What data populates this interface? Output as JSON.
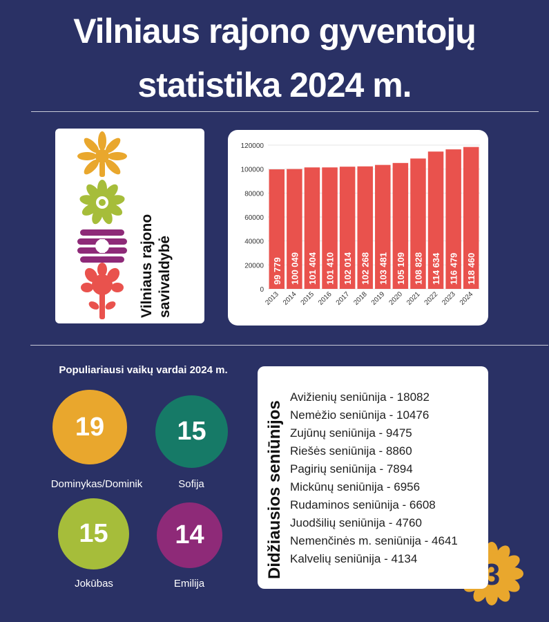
{
  "header": {
    "title_line1": "Vilniaus rajono gyventojų",
    "title_line2": "statistika 2024 m."
  },
  "logo": {
    "text_line1": "Vilniaus rajono",
    "text_line2": "savivaldybė",
    "colors": [
      "#e9a72d",
      "#a6bd3a",
      "#8e2a78",
      "#e9524d"
    ]
  },
  "chart_data": {
    "type": "bar",
    "categories": [
      "2013",
      "2014",
      "2015",
      "2016",
      "2017",
      "2018",
      "2019",
      "2020",
      "2021",
      "2022",
      "2023",
      "2024"
    ],
    "values": [
      99779,
      100049,
      101404,
      101410,
      102014,
      102268,
      103481,
      105109,
      108828,
      114634,
      116479,
      118460
    ],
    "value_labels": [
      "99 779",
      "100 049",
      "101 404",
      "101 410",
      "102 014",
      "102 268",
      "103 481",
      "105 109",
      "108 828",
      "114 634",
      "116 479",
      "118 460"
    ],
    "yticks": [
      "0",
      "20000",
      "40000",
      "60000",
      "80000",
      "100000",
      "120000"
    ],
    "ylim": [
      0,
      120000
    ],
    "bar_color": "#e9524d",
    "grid": true
  },
  "names": {
    "title": "Populiariausi vaikų vardai 2024 m.",
    "items": [
      {
        "count": "19",
        "name": "Dominykas/Dominik",
        "color": "#e9a72d"
      },
      {
        "count": "15",
        "name": "Sofija",
        "color": "#167a67"
      },
      {
        "count": "15",
        "name": "Jokūbas",
        "color": "#a6bd3a"
      },
      {
        "count": "14",
        "name": "Emilija",
        "color": "#8e2a78"
      }
    ]
  },
  "elderships": {
    "heading": "Didžiausios seniūnijos",
    "items": [
      "Avižienių seniūnija - 18082",
      "Nemėžio seniūnija - 10476",
      "Zujūnų seniūnija - 9475",
      "Riešės seniūnija - 8860",
      "Pagirių seniūnija - 7894",
      "Mickūnų seniūnija - 6956",
      "Rudaminos seniūnija - 6608",
      "Juodšilių seniūnija - 4760",
      "Nemenčinės m. seniūnija - 4641",
      "Kalvelių seniūnija - 4134"
    ]
  },
  "badge": {
    "text": "3",
    "color": "#e9a72d"
  }
}
